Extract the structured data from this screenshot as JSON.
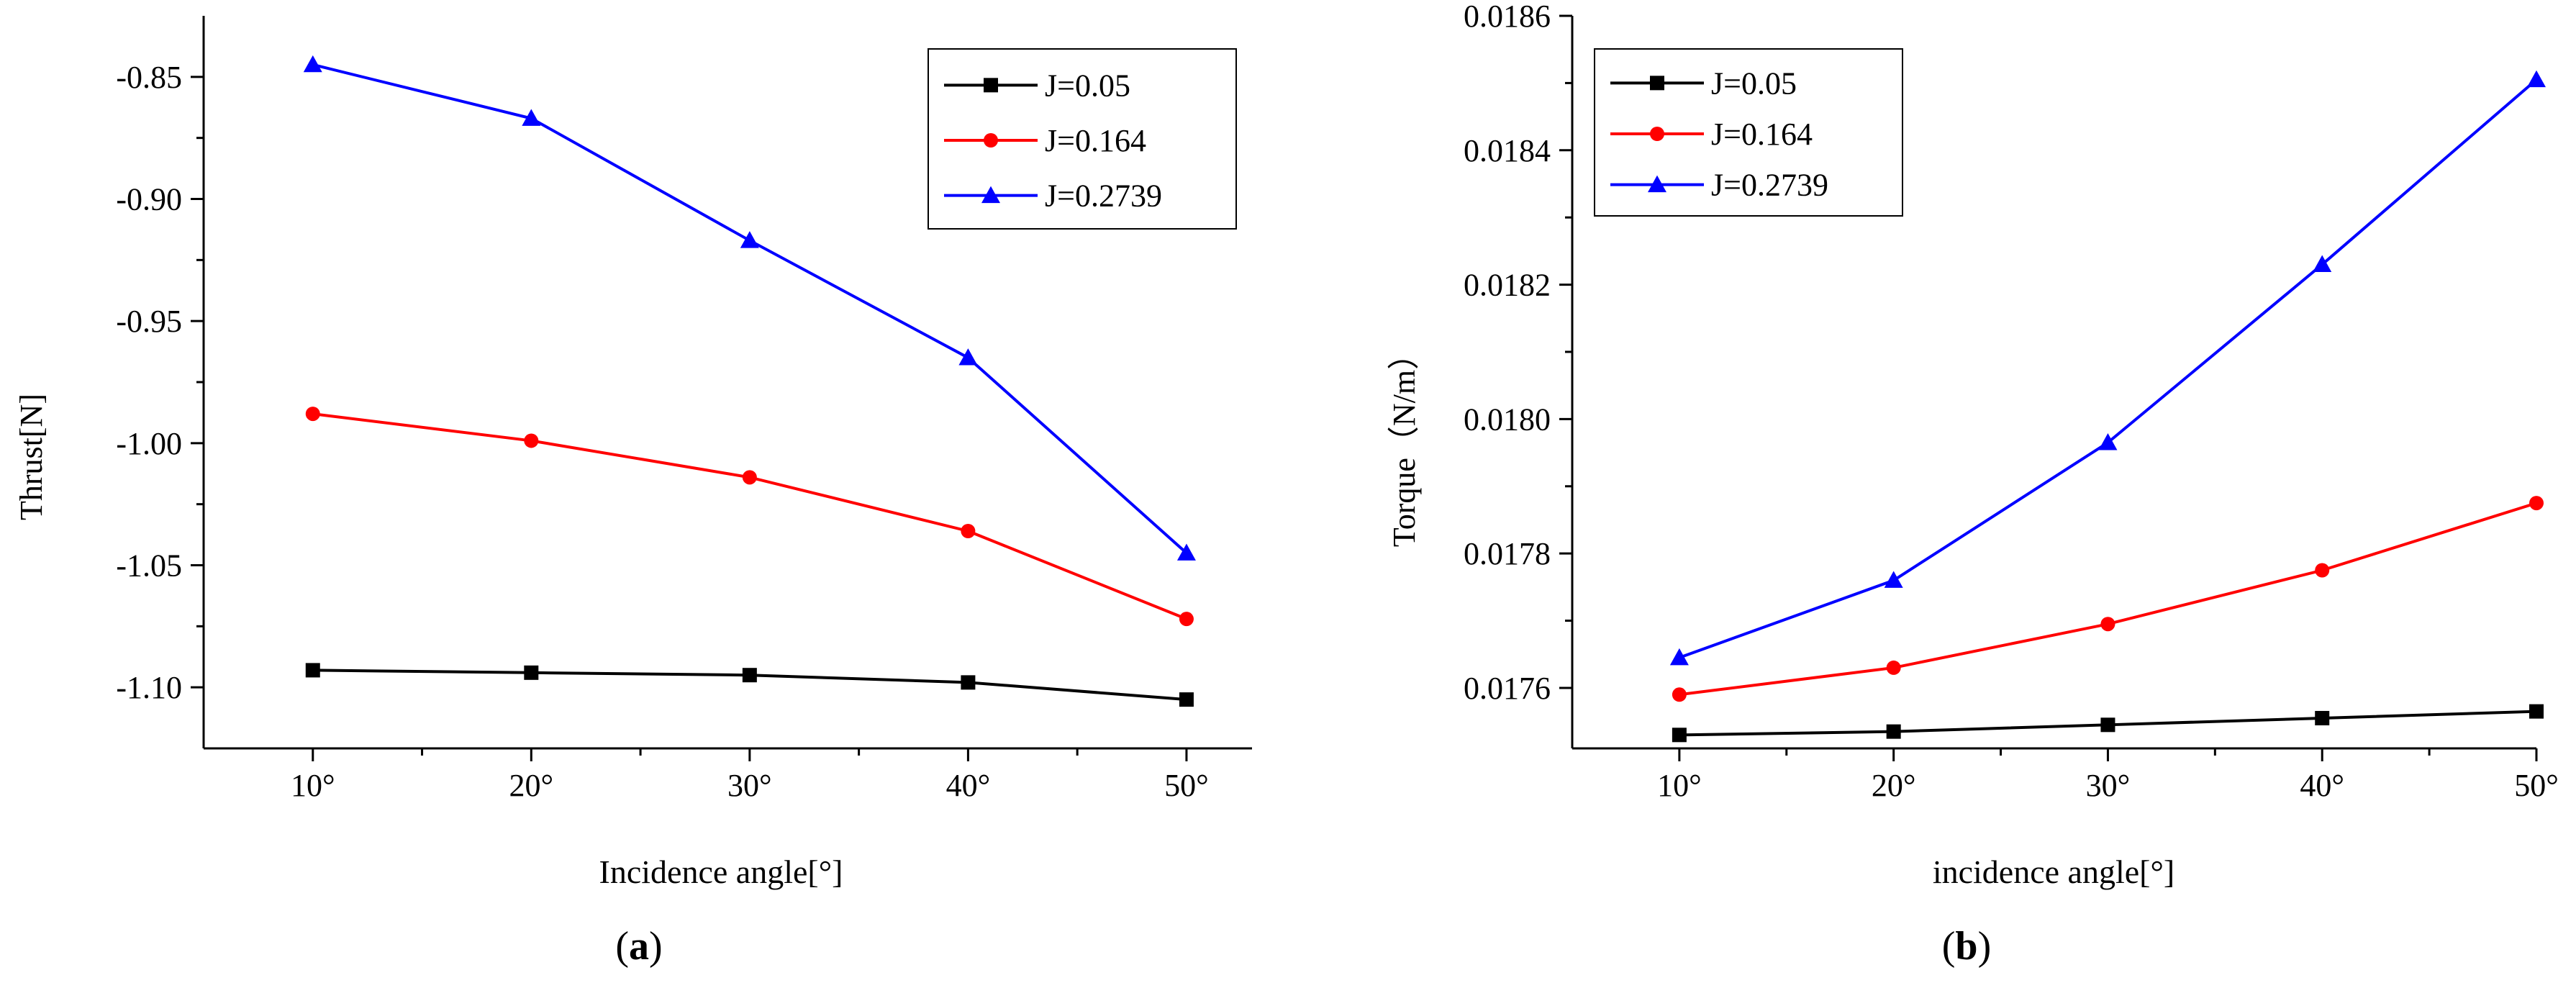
{
  "chart_data": [
    {
      "type": "line",
      "panel_label": "(a)",
      "panel_letter": "a",
      "title": "",
      "xlabel": "Incidence angle[°]",
      "ylabel": "Thrust[N]",
      "x": [
        10,
        20,
        30,
        40,
        50
      ],
      "xtick_labels": [
        "10°",
        "20°",
        "30°",
        "40°",
        "50°"
      ],
      "xlim": [
        5,
        53
      ],
      "ylim": [
        -1.125,
        -0.825
      ],
      "yticks": [
        -0.85,
        -0.9,
        -0.95,
        -1.0,
        -1.05,
        -1.1
      ],
      "ytick_labels": [
        "-0.85",
        "-0.90",
        "-0.95",
        "-1.00",
        "-1.05",
        "-1.10"
      ],
      "grid": false,
      "legend_position": "top-right",
      "series": [
        {
          "name": "J=0.05",
          "color": "#000000",
          "marker": "square",
          "values": [
            -1.093,
            -1.094,
            -1.095,
            -1.098,
            -1.105
          ]
        },
        {
          "name": "J=0.164",
          "color": "#ff0000",
          "marker": "circle",
          "values": [
            -0.988,
            -0.999,
            -1.014,
            -1.036,
            -1.072
          ]
        },
        {
          "name": "J=0.2739",
          "color": "#0000ff",
          "marker": "triangle",
          "values": [
            -0.845,
            -0.867,
            -0.917,
            -0.965,
            -1.045
          ]
        }
      ]
    },
    {
      "type": "line",
      "panel_label": "(b)",
      "panel_letter": "b",
      "title": "",
      "xlabel": "incidence angle[°]",
      "ylabel": "Torque（N/m）",
      "x": [
        10,
        20,
        30,
        40,
        50
      ],
      "xtick_labels": [
        "10°",
        "20°",
        "30°",
        "40°",
        "50°"
      ],
      "xlim": [
        5,
        50
      ],
      "ylim": [
        0.01751,
        0.0186
      ],
      "yticks": [
        0.0176,
        0.0178,
        0.018,
        0.0182,
        0.0184,
        0.0186
      ],
      "ytick_labels": [
        "0.0176",
        "0.0178",
        "0.0180",
        "0.0182",
        "0.0184",
        "0.0186"
      ],
      "grid": false,
      "legend_position": "top-left",
      "series": [
        {
          "name": "J=0.05",
          "color": "#000000",
          "marker": "square",
          "values": [
            0.01753,
            0.017535,
            0.017545,
            0.017555,
            0.017565
          ]
        },
        {
          "name": "J=0.164",
          "color": "#ff0000",
          "marker": "circle",
          "values": [
            0.01759,
            0.01763,
            0.017695,
            0.017775,
            0.017875
          ]
        },
        {
          "name": "J=0.2739",
          "color": "#0000ff",
          "marker": "triangle",
          "values": [
            0.017645,
            0.01776,
            0.017965,
            0.01823,
            0.018505
          ]
        }
      ]
    }
  ]
}
